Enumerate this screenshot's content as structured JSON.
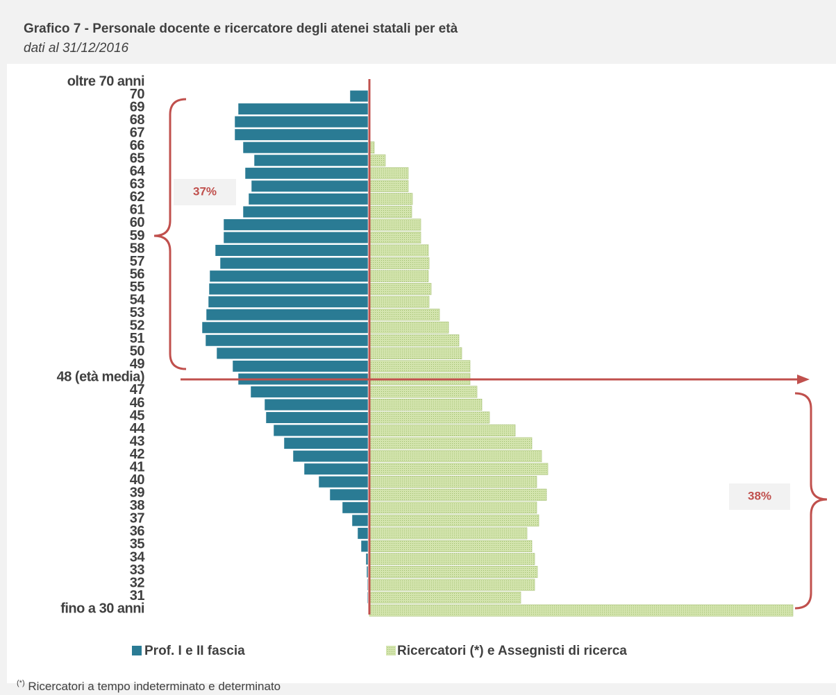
{
  "chart_data": {
    "type": "pyramid",
    "title": "Grafico 7 - Personale docente e ricercatore degli atenei statali per età",
    "subtitle": "dati al 31/12/2016",
    "categories": [
      "oltre 70 anni",
      "70",
      "69",
      "68",
      "67",
      "66",
      "65",
      "64",
      "63",
      "62",
      "61",
      "60",
      "59",
      "58",
      "57",
      "56",
      "55",
      "54",
      "53",
      "52",
      "51",
      "50",
      "49",
      "48 (età media)",
      "47",
      "46",
      "45",
      "44",
      "43",
      "42",
      "41",
      "40",
      "39",
      "38",
      "37",
      "36",
      "35",
      "34",
      "33",
      "32",
      "31",
      "fino a 30 anni"
    ],
    "series": [
      {
        "name": "Prof. I e II fascia",
        "color": "#2a7b94",
        "side": "left",
        "values": [
          0,
          26,
          187,
          192,
          192,
          180,
          164,
          177,
          168,
          172,
          180,
          208,
          208,
          220,
          213,
          228,
          229,
          230,
          233,
          239,
          234,
          218,
          195,
          187,
          169,
          149,
          147,
          136,
          121,
          108,
          92,
          71,
          55,
          37,
          23,
          15,
          10,
          3,
          2,
          1,
          1,
          0
        ]
      },
      {
        "name": "Ricercatori (*) e Assegnisti di ricerca",
        "color": "#d3e4ad",
        "side": "right",
        "values": [
          0,
          0,
          0,
          0,
          0,
          7,
          23,
          56,
          56,
          62,
          61,
          74,
          74,
          85,
          86,
          85,
          89,
          86,
          101,
          114,
          129,
          133,
          145,
          145,
          155,
          162,
          173,
          210,
          234,
          248,
          257,
          241,
          255,
          241,
          244,
          227,
          234,
          238,
          242,
          238,
          218,
          610
        ]
      }
    ],
    "annotations": [
      "37%",
      "38%"
    ],
    "footnote": {
      "mark": "(*)",
      "text": " Ricercatori a tempo indeterminato e determinato"
    }
  }
}
